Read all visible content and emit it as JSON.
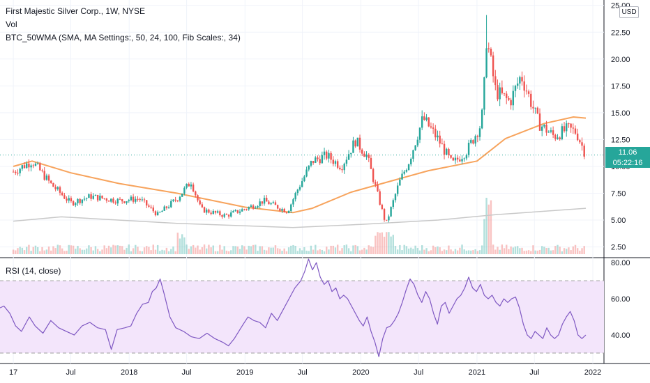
{
  "legend": {
    "title": "First Majestic Silver Corp., 1W, NYSE",
    "vol": "Vol",
    "indicator": "BTC_50WMA (SMA, MA Settings:, 50, 24, 100, Fib Scales:, 34)",
    "rsi": "RSI (14, close)"
  },
  "currency": "USD",
  "last_price": "11.06",
  "countdown": "05:22:16",
  "colors": {
    "up": "#26a69a",
    "down": "#ef5350",
    "ma_orange": "#f7a35c",
    "ma_gray": "#c8c8c8",
    "rsi_line": "#7e57c2",
    "rsi_band": "#f3e5fb",
    "last_price_line": "#26a69a"
  },
  "chart_data": [
    {
      "type": "candlestick",
      "title": "First Majestic Silver Corp., 1W, NYSE",
      "ylim": [
        1.5,
        25.5
      ],
      "y_ticks": [
        "2.50",
        "5.00",
        "7.50",
        "10.00",
        "12.50",
        "15.00",
        "17.50",
        "20.00",
        "22.50",
        "25.00"
      ],
      "x_ticks": [
        "17",
        "Jul",
        "2018",
        "Jul",
        "2019",
        "Jul",
        "2020",
        "Jul",
        "2021",
        "Jul",
        "2022"
      ],
      "price_anchors": [
        {
          "date": "2017-01-01",
          "close": 9.5
        },
        {
          "date": "2017-03-01",
          "close": 10.5
        },
        {
          "date": "2017-05-01",
          "close": 8.3
        },
        {
          "date": "2017-07-01",
          "close": 6.6
        },
        {
          "date": "2017-09-01",
          "close": 7.2
        },
        {
          "date": "2017-12-01",
          "close": 6.8
        },
        {
          "date": "2018-02-01",
          "close": 7.0
        },
        {
          "date": "2018-04-01",
          "close": 5.5
        },
        {
          "date": "2018-06-01",
          "close": 7.0
        },
        {
          "date": "2018-07-15",
          "close": 8.6
        },
        {
          "date": "2018-08-15",
          "close": 6.0
        },
        {
          "date": "2018-11-01",
          "close": 5.4
        },
        {
          "date": "2019-01-15",
          "close": 6.2
        },
        {
          "date": "2019-03-01",
          "close": 6.8
        },
        {
          "date": "2019-05-15",
          "close": 5.8
        },
        {
          "date": "2019-06-15",
          "close": 7.8
        },
        {
          "date": "2019-08-01",
          "close": 10.5
        },
        {
          "date": "2019-09-15",
          "close": 11.0
        },
        {
          "date": "2019-11-01",
          "close": 10.0
        },
        {
          "date": "2019-12-15",
          "close": 12.4
        },
        {
          "date": "2020-01-20",
          "close": 11.0
        },
        {
          "date": "2020-03-20",
          "close": 4.6
        },
        {
          "date": "2020-05-01",
          "close": 8.5
        },
        {
          "date": "2020-06-01",
          "close": 10.5
        },
        {
          "date": "2020-07-15",
          "close": 14.5
        },
        {
          "date": "2020-09-01",
          "close": 12.5
        },
        {
          "date": "2020-10-15",
          "close": 10.2
        },
        {
          "date": "2020-12-01",
          "close": 11.5
        },
        {
          "date": "2021-01-15",
          "close": 14.0
        },
        {
          "date": "2021-02-03",
          "close": 21.5
        },
        {
          "date": "2021-03-01",
          "close": 17.0
        },
        {
          "date": "2021-04-15",
          "close": 16.0
        },
        {
          "date": "2021-05-20",
          "close": 18.5
        },
        {
          "date": "2021-07-15",
          "close": 14.0
        },
        {
          "date": "2021-09-01",
          "close": 12.8
        },
        {
          "date": "2021-10-15",
          "close": 13.5
        },
        {
          "date": "2021-11-10",
          "close": 13.2
        },
        {
          "date": "2021-12-10",
          "close": 11.06
        }
      ],
      "series": [
        {
          "name": "BTC_50WMA",
          "style": "ma_orange",
          "points": [
            [
              "2017-01-01",
              10.0
            ],
            [
              "2017-03-01",
              10.5
            ],
            [
              "2017-07-01",
              9.4
            ],
            [
              "2017-12-01",
              8.4
            ],
            [
              "2018-06-01",
              7.5
            ],
            [
              "2019-01-01",
              6.2
            ],
            [
              "2019-06-01",
              5.7
            ],
            [
              "2019-08-01",
              6.1
            ],
            [
              "2019-12-01",
              7.6
            ],
            [
              "2020-04-01",
              8.6
            ],
            [
              "2020-08-01",
              9.6
            ],
            [
              "2021-01-01",
              10.5
            ],
            [
              "2021-04-01",
              12.6
            ],
            [
              "2021-08-01",
              14.0
            ],
            [
              "2021-11-01",
              14.6
            ],
            [
              "2021-12-10",
              14.5
            ]
          ]
        },
        {
          "style": "ma_gray",
          "points": [
            [
              "2017-01-01",
              4.9
            ],
            [
              "2017-06-01",
              5.3
            ],
            [
              "2018-06-01",
              4.7
            ],
            [
              "2019-06-01",
              4.3
            ],
            [
              "2020-01-01",
              4.6
            ],
            [
              "2020-09-01",
              5.0
            ],
            [
              "2021-03-01",
              5.5
            ],
            [
              "2021-12-10",
              6.1
            ]
          ]
        }
      ]
    },
    {
      "type": "line",
      "title": "RSI (14, close)",
      "ylim": [
        25,
        82
      ],
      "y_ticks": [
        "40.00",
        "60.00",
        "80.00"
      ],
      "bands": [
        30,
        70
      ],
      "values": [
        [
          0,
          55
        ],
        [
          2,
          56
        ],
        [
          5,
          52
        ],
        [
          8,
          45
        ],
        [
          11,
          42
        ],
        [
          15,
          50
        ],
        [
          18,
          45
        ],
        [
          22,
          41
        ],
        [
          26,
          48
        ],
        [
          30,
          44
        ],
        [
          34,
          42
        ],
        [
          38,
          40
        ],
        [
          42,
          45
        ],
        [
          46,
          47
        ],
        [
          50,
          44
        ],
        [
          54,
          43
        ],
        [
          57,
          32
        ],
        [
          60,
          43
        ],
        [
          64,
          44
        ],
        [
          67,
          45
        ],
        [
          70,
          52
        ],
        [
          73,
          57
        ],
        [
          76,
          58
        ],
        [
          78,
          64
        ],
        [
          80,
          66
        ],
        [
          82,
          71
        ],
        [
          84,
          63
        ],
        [
          87,
          50
        ],
        [
          90,
          44
        ],
        [
          94,
          42
        ],
        [
          98,
          39
        ],
        [
          102,
          38
        ],
        [
          106,
          41
        ],
        [
          110,
          38
        ],
        [
          114,
          36
        ],
        [
          117,
          34
        ],
        [
          120,
          38
        ],
        [
          124,
          45
        ],
        [
          127,
          50
        ],
        [
          130,
          48
        ],
        [
          133,
          47
        ],
        [
          136,
          44
        ],
        [
          139,
          52
        ],
        [
          142,
          48
        ],
        [
          145,
          54
        ],
        [
          148,
          60
        ],
        [
          151,
          66
        ],
        [
          154,
          70
        ],
        [
          156,
          75
        ],
        [
          158,
          82
        ],
        [
          160,
          76
        ],
        [
          162,
          80
        ],
        [
          164,
          72
        ],
        [
          166,
          68
        ],
        [
          168,
          70
        ],
        [
          170,
          64
        ],
        [
          172,
          66
        ],
        [
          174,
          60
        ],
        [
          176,
          62
        ],
        [
          178,
          60
        ],
        [
          180,
          56
        ],
        [
          182,
          52
        ],
        [
          184,
          48
        ],
        [
          186,
          45
        ],
        [
          188,
          50
        ],
        [
          190,
          42
        ],
        [
          192,
          36
        ],
        [
          194,
          28
        ],
        [
          196,
          38
        ],
        [
          198,
          44
        ],
        [
          200,
          45
        ],
        [
          202,
          48
        ],
        [
          204,
          52
        ],
        [
          206,
          58
        ],
        [
          208,
          65
        ],
        [
          210,
          71
        ],
        [
          212,
          68
        ],
        [
          214,
          62
        ],
        [
          216,
          58
        ],
        [
          218,
          64
        ],
        [
          220,
          60
        ],
        [
          222,
          52
        ],
        [
          224,
          46
        ],
        [
          226,
          56
        ],
        [
          228,
          58
        ],
        [
          230,
          52
        ],
        [
          232,
          56
        ],
        [
          234,
          60
        ],
        [
          236,
          62
        ],
        [
          238,
          66
        ],
        [
          240,
          72
        ],
        [
          242,
          66
        ],
        [
          244,
          64
        ],
        [
          246,
          68
        ],
        [
          248,
          62
        ],
        [
          250,
          60
        ],
        [
          252,
          62
        ],
        [
          254,
          58
        ],
        [
          256,
          56
        ],
        [
          258,
          60
        ],
        [
          260,
          58
        ],
        [
          262,
          60
        ],
        [
          264,
          61
        ],
        [
          266,
          55
        ],
        [
          268,
          46
        ],
        [
          270,
          40
        ],
        [
          272,
          38
        ],
        [
          274,
          42
        ],
        [
          276,
          40
        ],
        [
          278,
          38
        ],
        [
          280,
          44
        ],
        [
          282,
          40
        ],
        [
          284,
          38
        ],
        [
          286,
          40
        ],
        [
          288,
          46
        ],
        [
          290,
          50
        ],
        [
          292,
          53
        ],
        [
          294,
          48
        ],
        [
          296,
          40
        ],
        [
          298,
          38
        ],
        [
          300,
          40
        ]
      ]
    }
  ]
}
